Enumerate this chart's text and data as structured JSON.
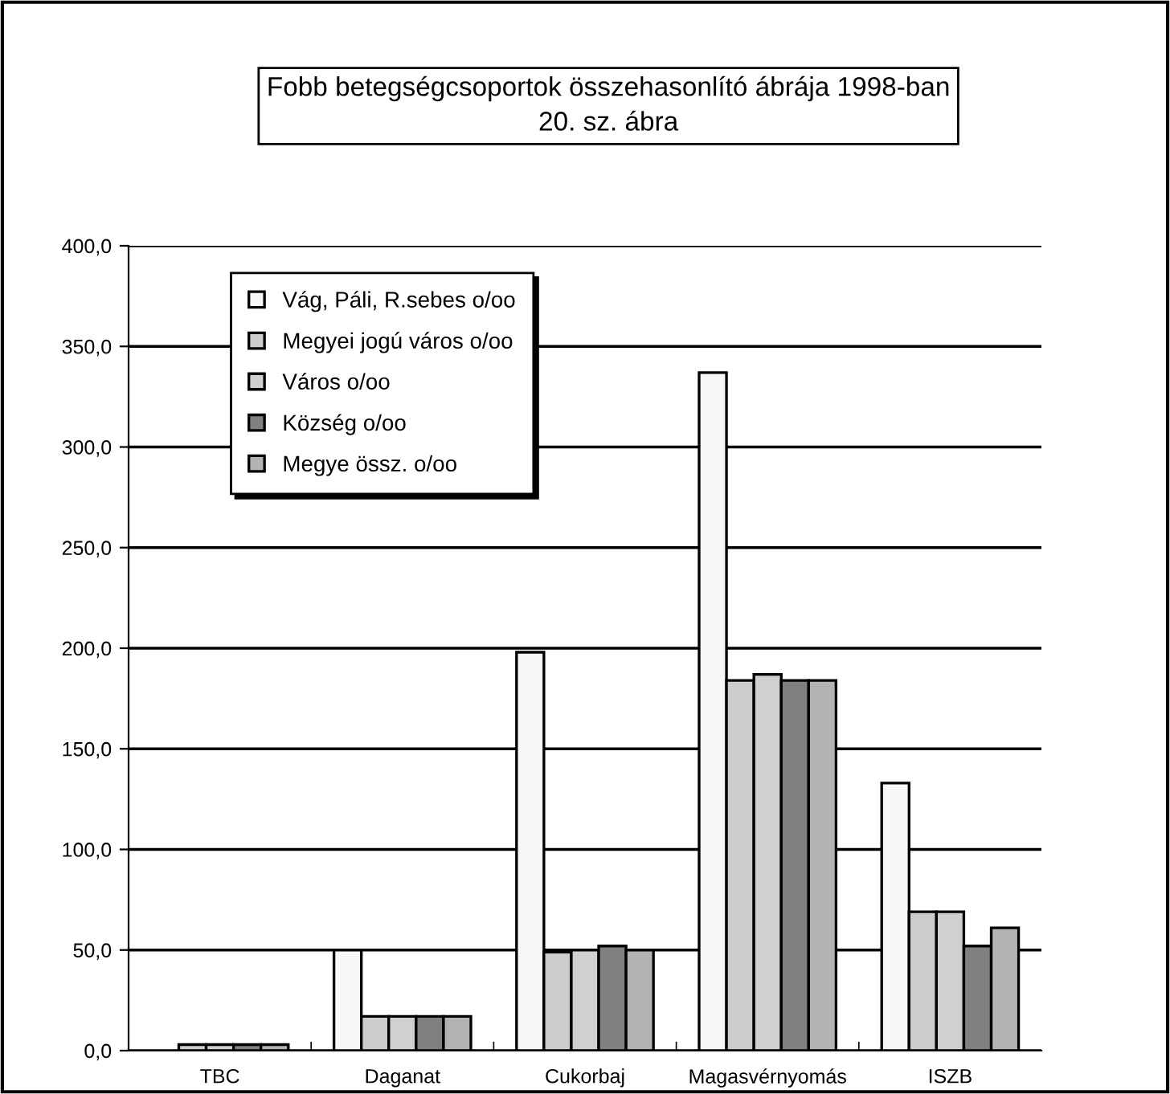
{
  "chart_data": {
    "type": "bar",
    "title": "Fobb betegségcsoportok összehasonlító ábrája 1998-ban\n20. sz. ábra",
    "categories": [
      "TBC",
      "Daganat",
      "Cukorbaj",
      "Magasvérnyomás",
      "ISZB"
    ],
    "series": [
      {
        "name": "Vág, Páli, R.sebes o/oo",
        "color": "#f7f7f7",
        "values": [
          null,
          50,
          198,
          337,
          133
        ]
      },
      {
        "name": "Megyei jogú város o/oo",
        "color": "#cccccc",
        "values": [
          3,
          17,
          49,
          184,
          69
        ]
      },
      {
        "name": "Város o/oo",
        "color": "#d0d0d0",
        "values": [
          3,
          17,
          50,
          187,
          69
        ]
      },
      {
        "name": "Község o/oo",
        "color": "#808080",
        "values": [
          3,
          17,
          52,
          184,
          52
        ]
      },
      {
        "name": "Megye össz. o/oo",
        "color": "#b3b3b3",
        "values": [
          3,
          17,
          50,
          184,
          61
        ]
      }
    ],
    "ylim": [
      0,
      400
    ],
    "yticks": [
      {
        "value": 0,
        "label": "0,0"
      },
      {
        "value": 50,
        "label": "50,0"
      },
      {
        "value": 100,
        "label": "100,0"
      },
      {
        "value": 150,
        "label": "150,0"
      },
      {
        "value": 200,
        "label": "200,0"
      },
      {
        "value": 250,
        "label": "250,0"
      },
      {
        "value": 300,
        "label": "300,0"
      },
      {
        "value": 350,
        "label": "350,0"
      },
      {
        "value": 400,
        "label": "400,0"
      }
    ],
    "grid": "y",
    "legend": "top left"
  }
}
